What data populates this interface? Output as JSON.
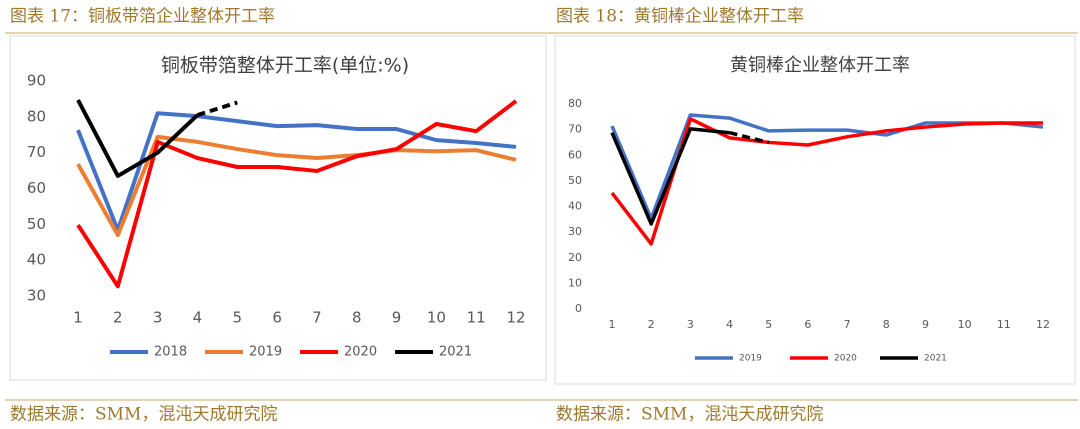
{
  "captions": [
    "图表 17：铜板带箔企业整体开工率",
    "图表 18：黄铜棒企业整体开工率"
  ],
  "sources": [
    "数据来源：SMM，混沌天成研究院",
    "数据来源：SMM，混沌天成研究院"
  ],
  "chart_data": [
    {
      "type": "line",
      "title": "铜板带箔整体开工率(单位:%)",
      "categories": [
        "1",
        "2",
        "3",
        "4",
        "5",
        "6",
        "7",
        "8",
        "9",
        "10",
        "11",
        "12"
      ],
      "ylim": [
        30,
        90
      ],
      "yticks": [
        30,
        40,
        50,
        60,
        70,
        80,
        90
      ],
      "series": [
        {
          "name": "2018",
          "color": "#4472c4",
          "values": [
            76.3,
            48.4,
            81,
            80.2,
            78.8,
            77.4,
            77.7,
            76.6,
            76.6,
            73.5,
            72.7,
            71.6
          ]
        },
        {
          "name": "2019",
          "color": "#ed7d31",
          "values": [
            66.8,
            47,
            74.4,
            73,
            71,
            69.3,
            68.5,
            69.3,
            70.7,
            70.4,
            70.7,
            68
          ]
        },
        {
          "name": "2020",
          "color": "#ff0000",
          "values": [
            49.8,
            32.7,
            73,
            68.5,
            66,
            66,
            64.9,
            69,
            71,
            78,
            76,
            84.4
          ]
        },
        {
          "name": "2021",
          "color": "#000000",
          "dash_from_index": 3,
          "values": [
            84.7,
            63.5,
            70,
            80.5,
            84,
            null,
            null,
            null,
            null,
            null,
            null,
            null
          ]
        }
      ]
    },
    {
      "type": "line",
      "title": "黄铜棒企业整体开工率",
      "categories": [
        "1",
        "2",
        "3",
        "4",
        "5",
        "6",
        "7",
        "8",
        "9",
        "10",
        "11",
        "12"
      ],
      "ylim": [
        0,
        80
      ],
      "yticks": [
        0,
        10,
        20,
        30,
        40,
        50,
        60,
        70,
        80
      ],
      "series": [
        {
          "name": "2019",
          "color": "#4472c4",
          "values": [
            71.4,
            35.3,
            75.7,
            74.5,
            69.5,
            69.8,
            69.8,
            67.9,
            72.6,
            72.6,
            72.6,
            71
          ]
        },
        {
          "name": "2020",
          "color": "#ff0000",
          "values": [
            45.3,
            25.4,
            74.2,
            66.8,
            65,
            64,
            67.2,
            69.5,
            71,
            72.2,
            72.6,
            72.6
          ]
        },
        {
          "name": "2021",
          "color": "#000000",
          "dash_from_index": 3,
          "values": [
            68.8,
            33.2,
            70.3,
            68.8,
            65,
            null,
            null,
            null,
            null,
            null,
            null,
            null
          ]
        }
      ]
    }
  ]
}
